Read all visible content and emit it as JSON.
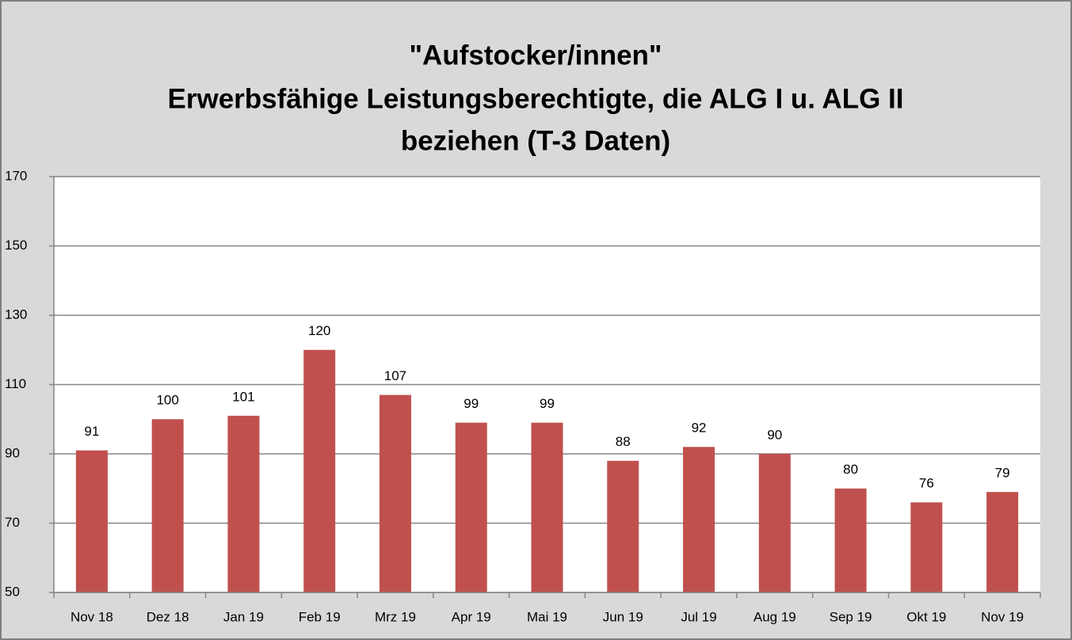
{
  "chart_data": {
    "type": "bar",
    "title": [
      "\"Aufstocker/innen\"",
      "Erwerbsfähige Leistungsberechtigte, die ALG I u. ALG II",
      "beziehen (T-3 Daten)"
    ],
    "categories": [
      "Nov 18",
      "Dez 18",
      "Jan 19",
      "Feb 19",
      "Mrz 19",
      "Apr 19",
      "Mai 19",
      "Jun 19",
      "Jul 19",
      "Aug 19",
      "Sep 19",
      "Okt 19",
      "Nov 19"
    ],
    "values": [
      91,
      100,
      101,
      120,
      107,
      99,
      99,
      88,
      92,
      90,
      80,
      76,
      79
    ],
    "color": "#c0504d",
    "ylim": [
      50,
      170
    ],
    "yticks": [
      50,
      70,
      90,
      110,
      130,
      150,
      170
    ],
    "grid": true
  }
}
